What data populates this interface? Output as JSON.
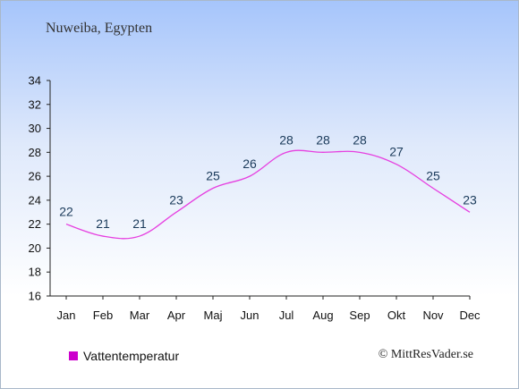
{
  "location": "Nuweiba, Egypten",
  "copyright": "© MittResVader.se",
  "colors": {
    "line": "#e63fe0",
    "legend": "#cc00cc",
    "axis": "#222222",
    "label": "#1a3a5a"
  },
  "chart_data": {
    "type": "line",
    "title": "Nuweiba, Egypten",
    "xlabel": "",
    "ylabel": "",
    "categories": [
      "Jan",
      "Feb",
      "Mar",
      "Apr",
      "Maj",
      "Jun",
      "Jul",
      "Aug",
      "Sep",
      "Okt",
      "Nov",
      "Dec"
    ],
    "series": [
      {
        "name": "Vattentemperatur",
        "values": [
          22,
          21,
          21,
          23,
          25,
          26,
          28,
          28,
          28,
          27,
          25,
          23
        ]
      }
    ],
    "ylim": [
      16,
      34
    ],
    "yticks": [
      16,
      18,
      20,
      22,
      24,
      26,
      28,
      30,
      32,
      34
    ],
    "grid": false,
    "legend": "bottom-left"
  }
}
